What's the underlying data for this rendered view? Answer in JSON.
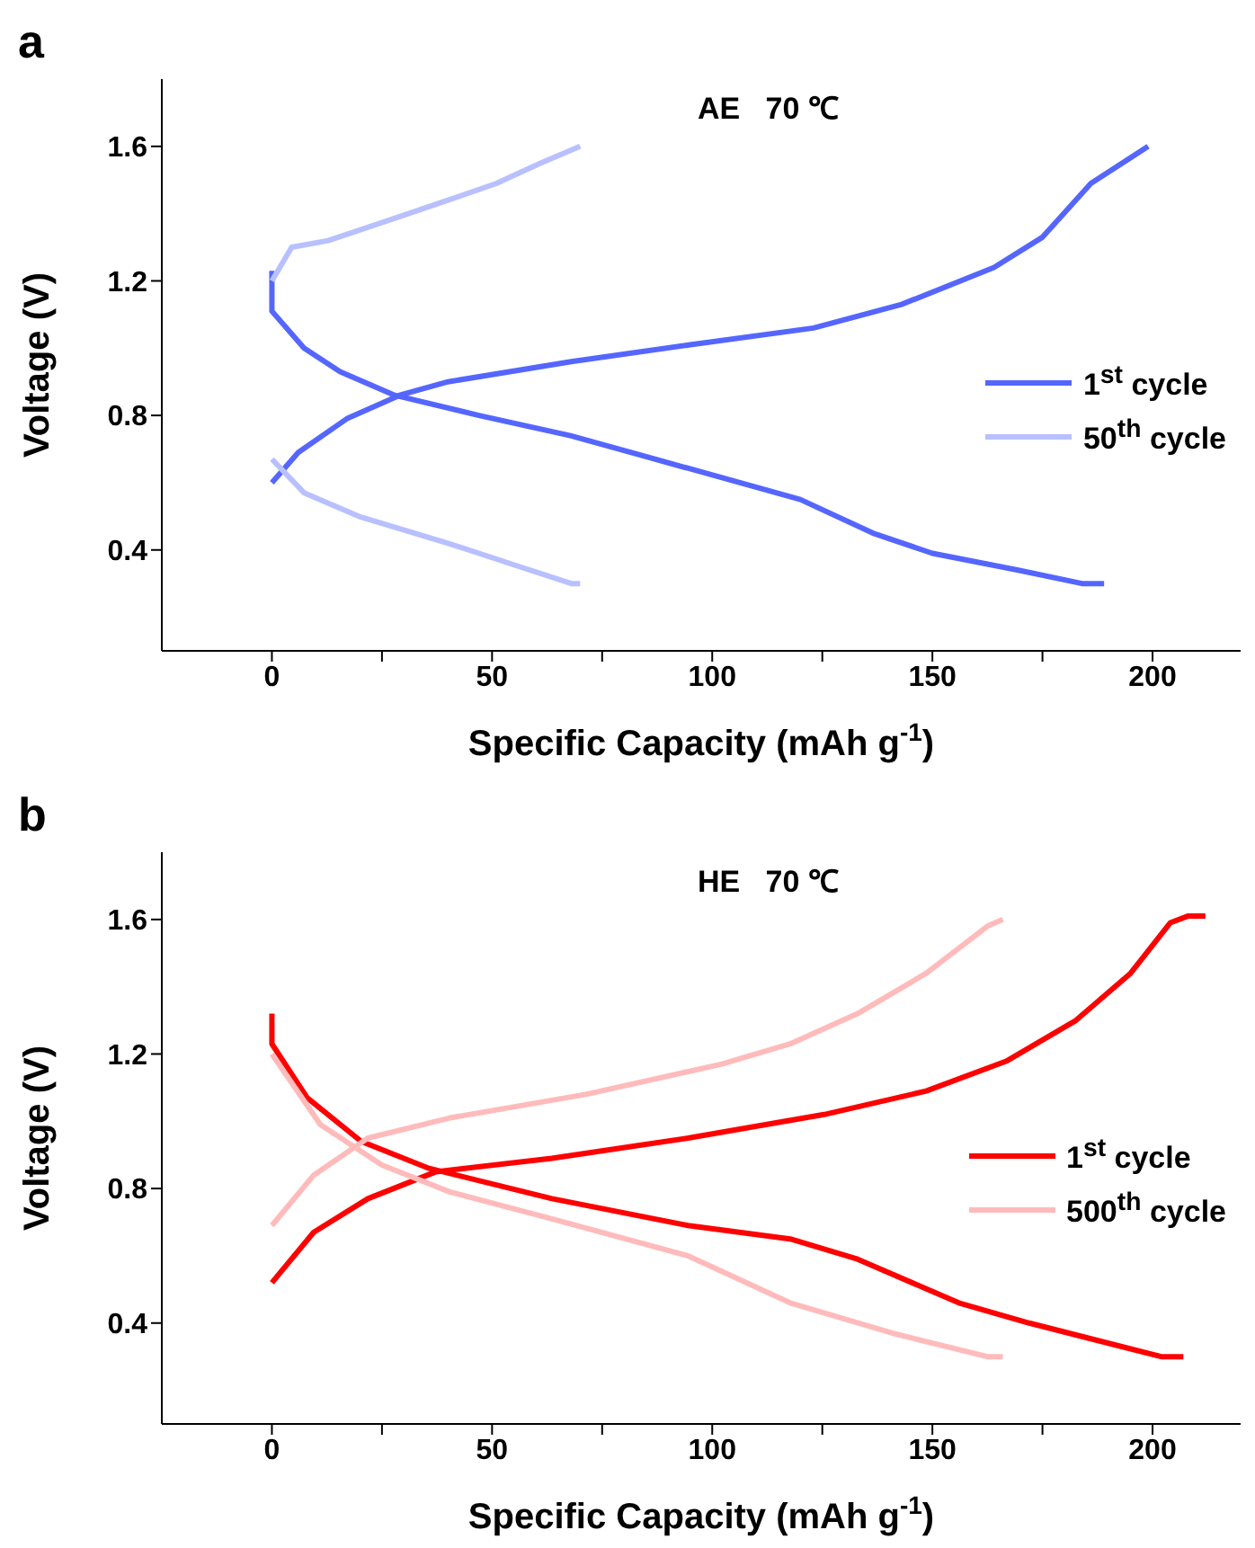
{
  "chart_data": [
    {
      "type": "line",
      "title": "a",
      "annotations": [
        "AE   70 ℃"
      ],
      "xlabel": "Specific Capacity (mAh g$^{-1}$)",
      "ylabel": "Voltage (V)",
      "xlim": [
        -25,
        220
      ],
      "ylim": [
        0.1,
        1.8
      ],
      "xticks": [
        0,
        {
          "value": 25,
          "label": null
        },
        50,
        {
          "value": 75,
          "label": null
        },
        100,
        {
          "value": 125,
          "label": null
        },
        150,
        {
          "value": 175,
          "label": null
        },
        200
      ],
      "yticks": [
        0.4,
        0.8,
        1.2,
        1.6
      ],
      "legend": "right",
      "series": [
        {
          "name": "1$^{st}$ cycle",
          "color": "#5566ff",
          "x": [
            0,
            0,
            7.3,
            15.5,
            27.9,
            47,
            67.8,
            95.3,
            120,
            136.5,
            150,
            169.5,
            184,
            189
          ],
          "values": [
            1.23,
            1.11,
            1.0,
            0.93,
            0.86,
            0.8,
            0.74,
            0.64,
            0.55,
            0.45,
            0.39,
            0.34,
            0.3,
            0.3
          ]
        },
        {
          "color": "#5566ff",
          "x": [
            0,
            6,
            17,
            29,
            40,
            68,
            95,
            123,
            143,
            164,
            175,
            186,
            199
          ],
          "values": [
            0.6,
            0.69,
            0.79,
            0.86,
            0.9,
            0.96,
            1.01,
            1.06,
            1.13,
            1.24,
            1.33,
            1.49,
            1.6
          ]
        },
        {
          "name": "50$^{th}$ cycle",
          "color": "#b8c0ff",
          "x": [
            0,
            7.3,
            19.7,
            40,
            54,
            68,
            70
          ],
          "values": [
            0.67,
            0.57,
            0.5,
            0.42,
            0.36,
            0.3,
            0.3
          ]
        },
        {
          "color": "#b8c0ff",
          "x": [
            0,
            4.5,
            12.8,
            26.5,
            40,
            51,
            61,
            70
          ],
          "values": [
            1.2,
            1.3,
            1.32,
            1.38,
            1.44,
            1.49,
            1.55,
            1.6
          ]
        }
      ]
    },
    {
      "type": "line",
      "title": "b",
      "annotations": [
        "HE   70 ℃"
      ],
      "xlabel": "Specific Capacity (mAh g$^{-1}$)",
      "ylabel": "Voltage (V)",
      "xlim": [
        -25,
        220
      ],
      "ylim": [
        0.1,
        1.8
      ],
      "xticks": [
        0,
        {
          "value": 25,
          "label": null
        },
        50,
        {
          "value": 75,
          "label": null
        },
        100,
        {
          "value": 125,
          "label": null
        },
        150,
        {
          "value": 175,
          "label": null
        },
        200
      ],
      "yticks": [
        0.4,
        0.8,
        1.2,
        1.6
      ],
      "legend": "right",
      "series": [
        {
          "name": "1$^{st}$ cycle",
          "color": "#ff0000",
          "x": [
            0,
            0,
            8,
            20.3,
            35.7,
            63.6,
            94.5,
            117.7,
            133,
            156,
            172,
            187,
            202,
            207
          ],
          "values": [
            1.32,
            1.23,
            1.07,
            0.94,
            0.86,
            0.77,
            0.69,
            0.65,
            0.59,
            0.46,
            0.4,
            0.35,
            0.3,
            0.3
          ]
        },
        {
          "color": "#ff0000",
          "x": [
            0,
            9.5,
            21.8,
            37.3,
            63.6,
            94.5,
            125.4,
            148.6,
            167,
            182.6,
            195,
            204,
            208,
            212
          ],
          "values": [
            0.52,
            0.67,
            0.77,
            0.85,
            0.89,
            0.95,
            1.02,
            1.09,
            1.18,
            1.3,
            1.44,
            1.59,
            1.61,
            1.61
          ]
        },
        {
          "name": "500$^{th}$ cycle",
          "color": "#ffbbbb",
          "x": [
            0,
            11,
            25,
            40.4,
            63.6,
            94.5,
            117.7,
            140.9,
            162.5,
            166
          ],
          "values": [
            1.2,
            0.99,
            0.87,
            0.79,
            0.71,
            0.6,
            0.46,
            0.37,
            0.3,
            0.3
          ]
        },
        {
          "color": "#ffbbbb",
          "x": [
            0,
            9.5,
            21.8,
            40.4,
            71.3,
            102.2,
            117.7,
            133,
            148.6,
            162.5,
            166
          ],
          "values": [
            0.69,
            0.84,
            0.95,
            1.01,
            1.08,
            1.17,
            1.23,
            1.32,
            1.44,
            1.58,
            1.6
          ]
        }
      ]
    }
  ]
}
